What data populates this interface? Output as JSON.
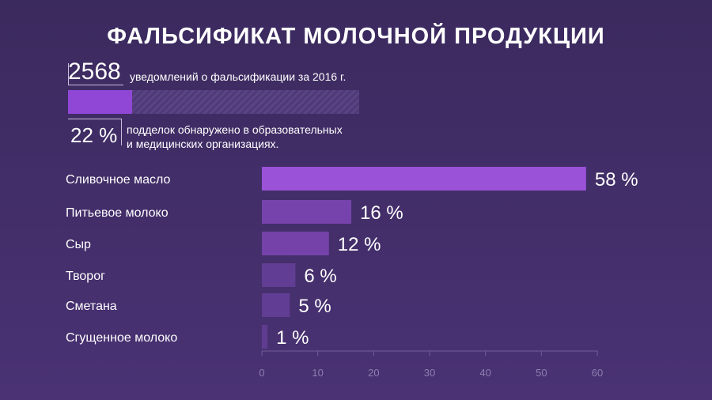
{
  "title": "ФАЛЬСИФИКАТ МОЛОЧНОЙ ПРОДУКЦИИ",
  "stats": {
    "notifications_count": "2568",
    "notifications_text": "уведомлений о фальсификации за 2016 г.",
    "share_value": "22 %",
    "share_fraction": 0.22,
    "share_text_line1": "подделок обнаружено в образовательных",
    "share_text_line2": "и медицинских организациях."
  },
  "colors": {
    "background": "#3f2d64",
    "bar_accent": "#9147d6",
    "axis_text": "#8c7fae"
  },
  "chart_data": {
    "type": "bar",
    "orientation": "horizontal",
    "categories": [
      "Сливочное масло",
      "Питьевое молоко",
      "Сыр",
      "Творог",
      "Сметана",
      "Сгущенное молоко"
    ],
    "values": [
      58,
      16,
      12,
      6,
      5,
      1
    ],
    "value_labels": [
      "58 %",
      "16 %",
      "12 %",
      "6 %",
      "5 %",
      "1 %"
    ],
    "xlim": [
      0,
      60
    ],
    "xticks": [
      0,
      10,
      20,
      30,
      40,
      50,
      60
    ],
    "grid": false,
    "title": "",
    "xlabel": "",
    "ylabel": ""
  }
}
